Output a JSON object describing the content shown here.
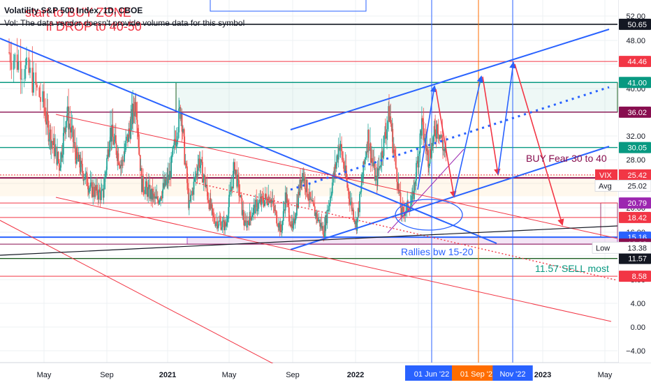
{
  "header": {
    "symbol_title": "Volatility S&P 500 Index, 1D, CBOE",
    "volume_notice": "Vol: The data vendor doesn't provide volume data for this symbol"
  },
  "colors": {
    "blue": "#2962ff",
    "red": "#f23645",
    "green": "#089981",
    "maroon": "#880e4f",
    "purple": "#9c27b0",
    "orange": "#ff6d00",
    "grid": "#eef0f3",
    "axis_text": "#131722"
  },
  "chart_data": {
    "type": "candlestick",
    "title": "Volatility S&P 500 Index, 1D, CBOE",
    "y_axis": {
      "scale": "log",
      "range": [
        -6.5,
        57
      ],
      "ticks": [
        52.0,
        48.0,
        44.0,
        40.0,
        36.0,
        32.0,
        28.0,
        24.0,
        20.0,
        16.0,
        12.0,
        8.0,
        4.0,
        0.0,
        -4.0
      ],
      "tick_labels": [
        "52.00",
        "48.00",
        "44.00",
        "40.00",
        "36.00",
        "32.00",
        "28.00",
        "24.00",
        "20.00",
        "16.00",
        "12.00",
        "8.00",
        "4.00",
        "0.00",
        "−4.00"
      ]
    },
    "x_axis": {
      "range": [
        "2020-04-01",
        "2023-06-30"
      ],
      "tick_labels": [
        "May",
        "Sep",
        "2021",
        "May",
        "Sep",
        "2022",
        "May",
        "Sep",
        "2023",
        "May"
      ],
      "tick_dates": [
        "2020-05-01",
        "2020-09-01",
        "2021-01-01",
        "2021-05-01",
        "2021-09-01",
        "2022-01-01",
        "2022-05-01",
        "2022-09-01",
        "2023-01-01",
        "2023-05-01"
      ]
    },
    "grid": true,
    "price_anchors": [
      [
        "2020-04-01",
        46
      ],
      [
        "2020-04-20",
        42
      ],
      [
        "2020-05-10",
        33
      ],
      [
        "2020-06-01",
        27
      ],
      [
        "2020-06-15",
        36
      ],
      [
        "2020-07-05",
        28
      ],
      [
        "2020-08-01",
        23
      ],
      [
        "2020-08-25",
        22
      ],
      [
        "2020-09-08",
        33
      ],
      [
        "2020-10-01",
        27
      ],
      [
        "2020-10-30",
        38
      ],
      [
        "2020-11-10",
        24
      ],
      [
        "2020-12-10",
        21
      ],
      [
        "2021-01-05",
        25
      ],
      [
        "2021-01-27",
        37
      ],
      [
        "2021-02-12",
        20
      ],
      [
        "2021-03-04",
        28
      ],
      [
        "2021-04-01",
        18
      ],
      [
        "2021-04-25",
        17
      ],
      [
        "2021-05-12",
        27
      ],
      [
        "2021-06-01",
        17
      ],
      [
        "2021-06-20",
        20
      ],
      [
        "2021-07-19",
        22
      ],
      [
        "2021-08-10",
        16
      ],
      [
        "2021-08-19",
        22
      ],
      [
        "2021-09-01",
        16
      ],
      [
        "2021-09-20",
        26
      ],
      [
        "2021-10-05",
        21
      ],
      [
        "2021-11-01",
        16
      ],
      [
        "2021-11-26",
        28
      ],
      [
        "2021-12-01",
        31
      ],
      [
        "2021-12-20",
        22
      ],
      [
        "2022-01-03",
        17
      ],
      [
        "2022-01-25",
        32
      ],
      [
        "2022-02-10",
        24
      ],
      [
        "2022-03-07",
        36
      ],
      [
        "2022-03-30",
        19
      ],
      [
        "2022-04-20",
        21
      ],
      [
        "2022-05-09",
        34
      ],
      [
        "2022-05-25",
        28
      ],
      [
        "2022-06-13",
        34
      ],
      [
        "2022-06-30",
        28
      ]
    ],
    "candles_note": "",
    "horizontal_levels": [
      {
        "value": 50.65,
        "label": "50.65",
        "color": "#131722",
        "line_color": "#131722",
        "width": 1.6,
        "text_color": "#ffffff"
      },
      {
        "value": 44.46,
        "label": "44.46",
        "color": "#f23645",
        "line_color": "#f23645",
        "width": 1,
        "text_color": "#ffffff"
      },
      {
        "value": 41.0,
        "label": "41.00",
        "color": "#089981",
        "line_color": "#089981",
        "width": 1.4,
        "text_color": "#ffffff"
      },
      {
        "value": 36.02,
        "label": "36.02",
        "color": "#880e4f",
        "line_color": "#880e4f",
        "width": 1.4,
        "text_color": "#ffffff"
      },
      {
        "value": 30.05,
        "label": "30.05",
        "color": "#089981",
        "line_color": "#089981",
        "width": 1.4,
        "text_color": "#ffffff"
      },
      {
        "value": 24.92,
        "label": "24.92",
        "color": "#131722",
        "line_color": "#880e4f",
        "width": 2,
        "text_color": "#ffffff"
      },
      {
        "value": 20.79,
        "label": "20.79",
        "color": "#9c27b0",
        "line_color": "#f23645",
        "width": 1,
        "text_color": "#ffffff"
      },
      {
        "value": 18.42,
        "label": "18.42",
        "color": "#f23645",
        "line_color": "#f23645",
        "width": 1,
        "text_color": "#ffffff"
      },
      {
        "value": 15.16,
        "label": "15.16",
        "color": "#2962ff",
        "line_color": "#2962ff",
        "width": 2,
        "text_color": "#ffffff"
      },
      {
        "value": 13.98,
        "label": "13.98",
        "color": "#880e4f",
        "line_color": "#880e4f",
        "width": 1,
        "text_color": "#ffffff"
      },
      {
        "value": 11.57,
        "label": "11.57",
        "color": "#131722",
        "line_color": "#1b5e20",
        "width": 1.4,
        "text_color": "#ffffff"
      },
      {
        "value": 8.58,
        "label": "8.58",
        "color": "#f23645",
        "line_color": "#f23645",
        "width": 1,
        "text_color": "#ffffff"
      }
    ],
    "price_labels": [
      {
        "tag": "VIX",
        "value": 25.42,
        "label": "25.42",
        "color": "#f23645"
      },
      {
        "tag": "Avg",
        "value": 25.02,
        "label": "25.02",
        "color": "#131722"
      },
      {
        "tag": "Low",
        "value": 13.38,
        "label": "13.38",
        "color": "#131722"
      }
    ],
    "date_markers": [
      {
        "date": "2022-06-01",
        "label": "01 Jun '22",
        "color": "#2962ff"
      },
      {
        "date": "2022-09-01",
        "label": "01 Sep '22",
        "color": "#ff6d00"
      },
      {
        "date": "2022-11-01",
        "label": "Nov '22",
        "color": "#2962ff"
      }
    ],
    "annotations": [
      {
        "text": "start to BUY ZONE",
        "color": "#f23645"
      },
      {
        "text": "if DROP to 40-50",
        "color": "#f23645"
      },
      {
        "text": "BUY Fear 30 to 40",
        "color": "#880e4f"
      },
      {
        "text": "Rallies bw 15-20",
        "color": "#2962ff"
      },
      {
        "text": "11.57 SELL most",
        "color": "#089981"
      }
    ]
  }
}
